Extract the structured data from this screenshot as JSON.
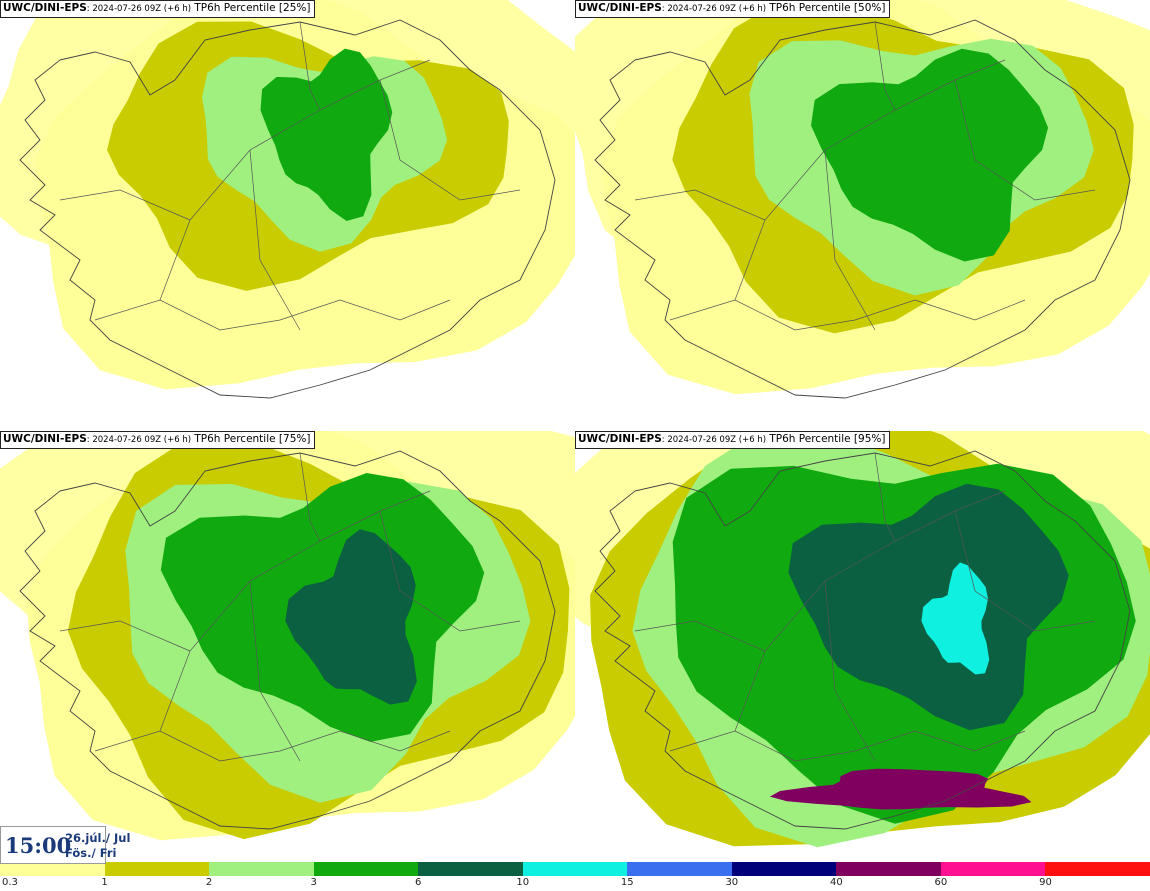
{
  "panels": [
    {
      "model": "UWC/DINI-EPS",
      "run": ": 2024-07-26 09Z (+6 h)",
      "field": " TP6h Percentile [25%]",
      "level": 1
    },
    {
      "model": "UWC/DINI-EPS",
      "run": ": 2024-07-26 09Z (+6 h)",
      "field": " TP6h Percentile [50%]",
      "level": 2
    },
    {
      "model": "UWC/DINI-EPS",
      "run": ": 2024-07-26 09Z (+6 h)",
      "field": " TP6h Percentile [75%]",
      "level": 3
    },
    {
      "model": "UWC/DINI-EPS",
      "run": ": 2024-07-26 09Z (+6 h)",
      "field": " TP6h Percentile [95%]",
      "level": 4
    }
  ],
  "valid_time": {
    "time": "15:00",
    "date": "26.júl./ Jul",
    "day": "Fös./ Fri"
  },
  "colorbar": {
    "labels": [
      "0.3",
      "1",
      "2",
      "3",
      "6",
      "10",
      "15",
      "30",
      "40",
      "60",
      "90"
    ],
    "colors": [
      "#ffff99",
      "#c8cc00",
      "#a0f080",
      "#10aa10",
      "#0a6040",
      "#10f0e0",
      "#3a70f0",
      "#00007a",
      "#800060",
      "#ff1090",
      "#ff1010"
    ]
  }
}
